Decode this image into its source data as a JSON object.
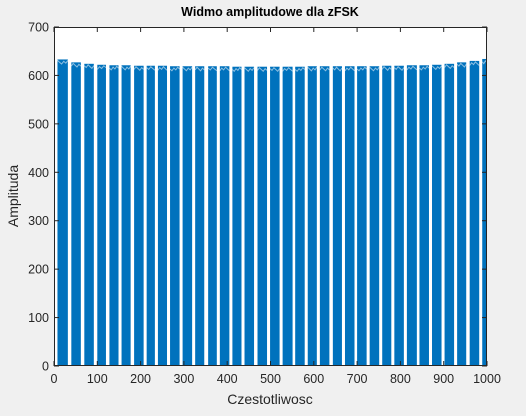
{
  "chart_data": {
    "type": "bar",
    "title": "Widmo amplitudowe dla zFSK",
    "xlabel": "Czestotliwosc",
    "ylabel": "Amplituda",
    "xlim": [
      0,
      1000
    ],
    "ylim": [
      0,
      700
    ],
    "xticks": [
      0,
      100,
      200,
      300,
      400,
      500,
      600,
      700,
      800,
      900,
      1000
    ],
    "yticks": [
      0,
      100,
      200,
      300,
      400,
      500,
      600,
      700
    ],
    "grid": false,
    "color": "#0072BD",
    "bands": [
      {
        "x0": 8,
        "x1": 32,
        "y": 633
      },
      {
        "x0": 40,
        "x1": 62,
        "y": 627
      },
      {
        "x0": 70,
        "x1": 92,
        "y": 624
      },
      {
        "x0": 100,
        "x1": 120,
        "y": 622
      },
      {
        "x0": 128,
        "x1": 149,
        "y": 621
      },
      {
        "x0": 156,
        "x1": 177,
        "y": 621
      },
      {
        "x0": 185,
        "x1": 207,
        "y": 620
      },
      {
        "x0": 214,
        "x1": 233,
        "y": 620
      },
      {
        "x0": 240,
        "x1": 261,
        "y": 620
      },
      {
        "x0": 268,
        "x1": 290,
        "y": 619
      },
      {
        "x0": 297,
        "x1": 319,
        "y": 619
      },
      {
        "x0": 326,
        "x1": 347,
        "y": 619
      },
      {
        "x0": 356,
        "x1": 376,
        "y": 619
      },
      {
        "x0": 383,
        "x1": 405,
        "y": 619
      },
      {
        "x0": 412,
        "x1": 433,
        "y": 618
      },
      {
        "x0": 440,
        "x1": 462,
        "y": 618
      },
      {
        "x0": 470,
        "x1": 492,
        "y": 618
      },
      {
        "x0": 499,
        "x1": 521,
        "y": 618
      },
      {
        "x0": 528,
        "x1": 551,
        "y": 618
      },
      {
        "x0": 557,
        "x1": 579,
        "y": 618
      },
      {
        "x0": 586,
        "x1": 607,
        "y": 619
      },
      {
        "x0": 614,
        "x1": 636,
        "y": 619
      },
      {
        "x0": 644,
        "x1": 665,
        "y": 619
      },
      {
        "x0": 672,
        "x1": 694,
        "y": 619
      },
      {
        "x0": 700,
        "x1": 722,
        "y": 619
      },
      {
        "x0": 729,
        "x1": 751,
        "y": 619
      },
      {
        "x0": 758,
        "x1": 779,
        "y": 620
      },
      {
        "x0": 786,
        "x1": 808,
        "y": 620
      },
      {
        "x0": 815,
        "x1": 838,
        "y": 621
      },
      {
        "x0": 844,
        "x1": 866,
        "y": 621
      },
      {
        "x0": 873,
        "x1": 895,
        "y": 622
      },
      {
        "x0": 902,
        "x1": 924,
        "y": 624
      },
      {
        "x0": 931,
        "x1": 952,
        "y": 627
      },
      {
        "x0": 960,
        "x1": 982,
        "y": 630
      },
      {
        "x0": 989,
        "x1": 1000,
        "y": 634
      }
    ]
  }
}
